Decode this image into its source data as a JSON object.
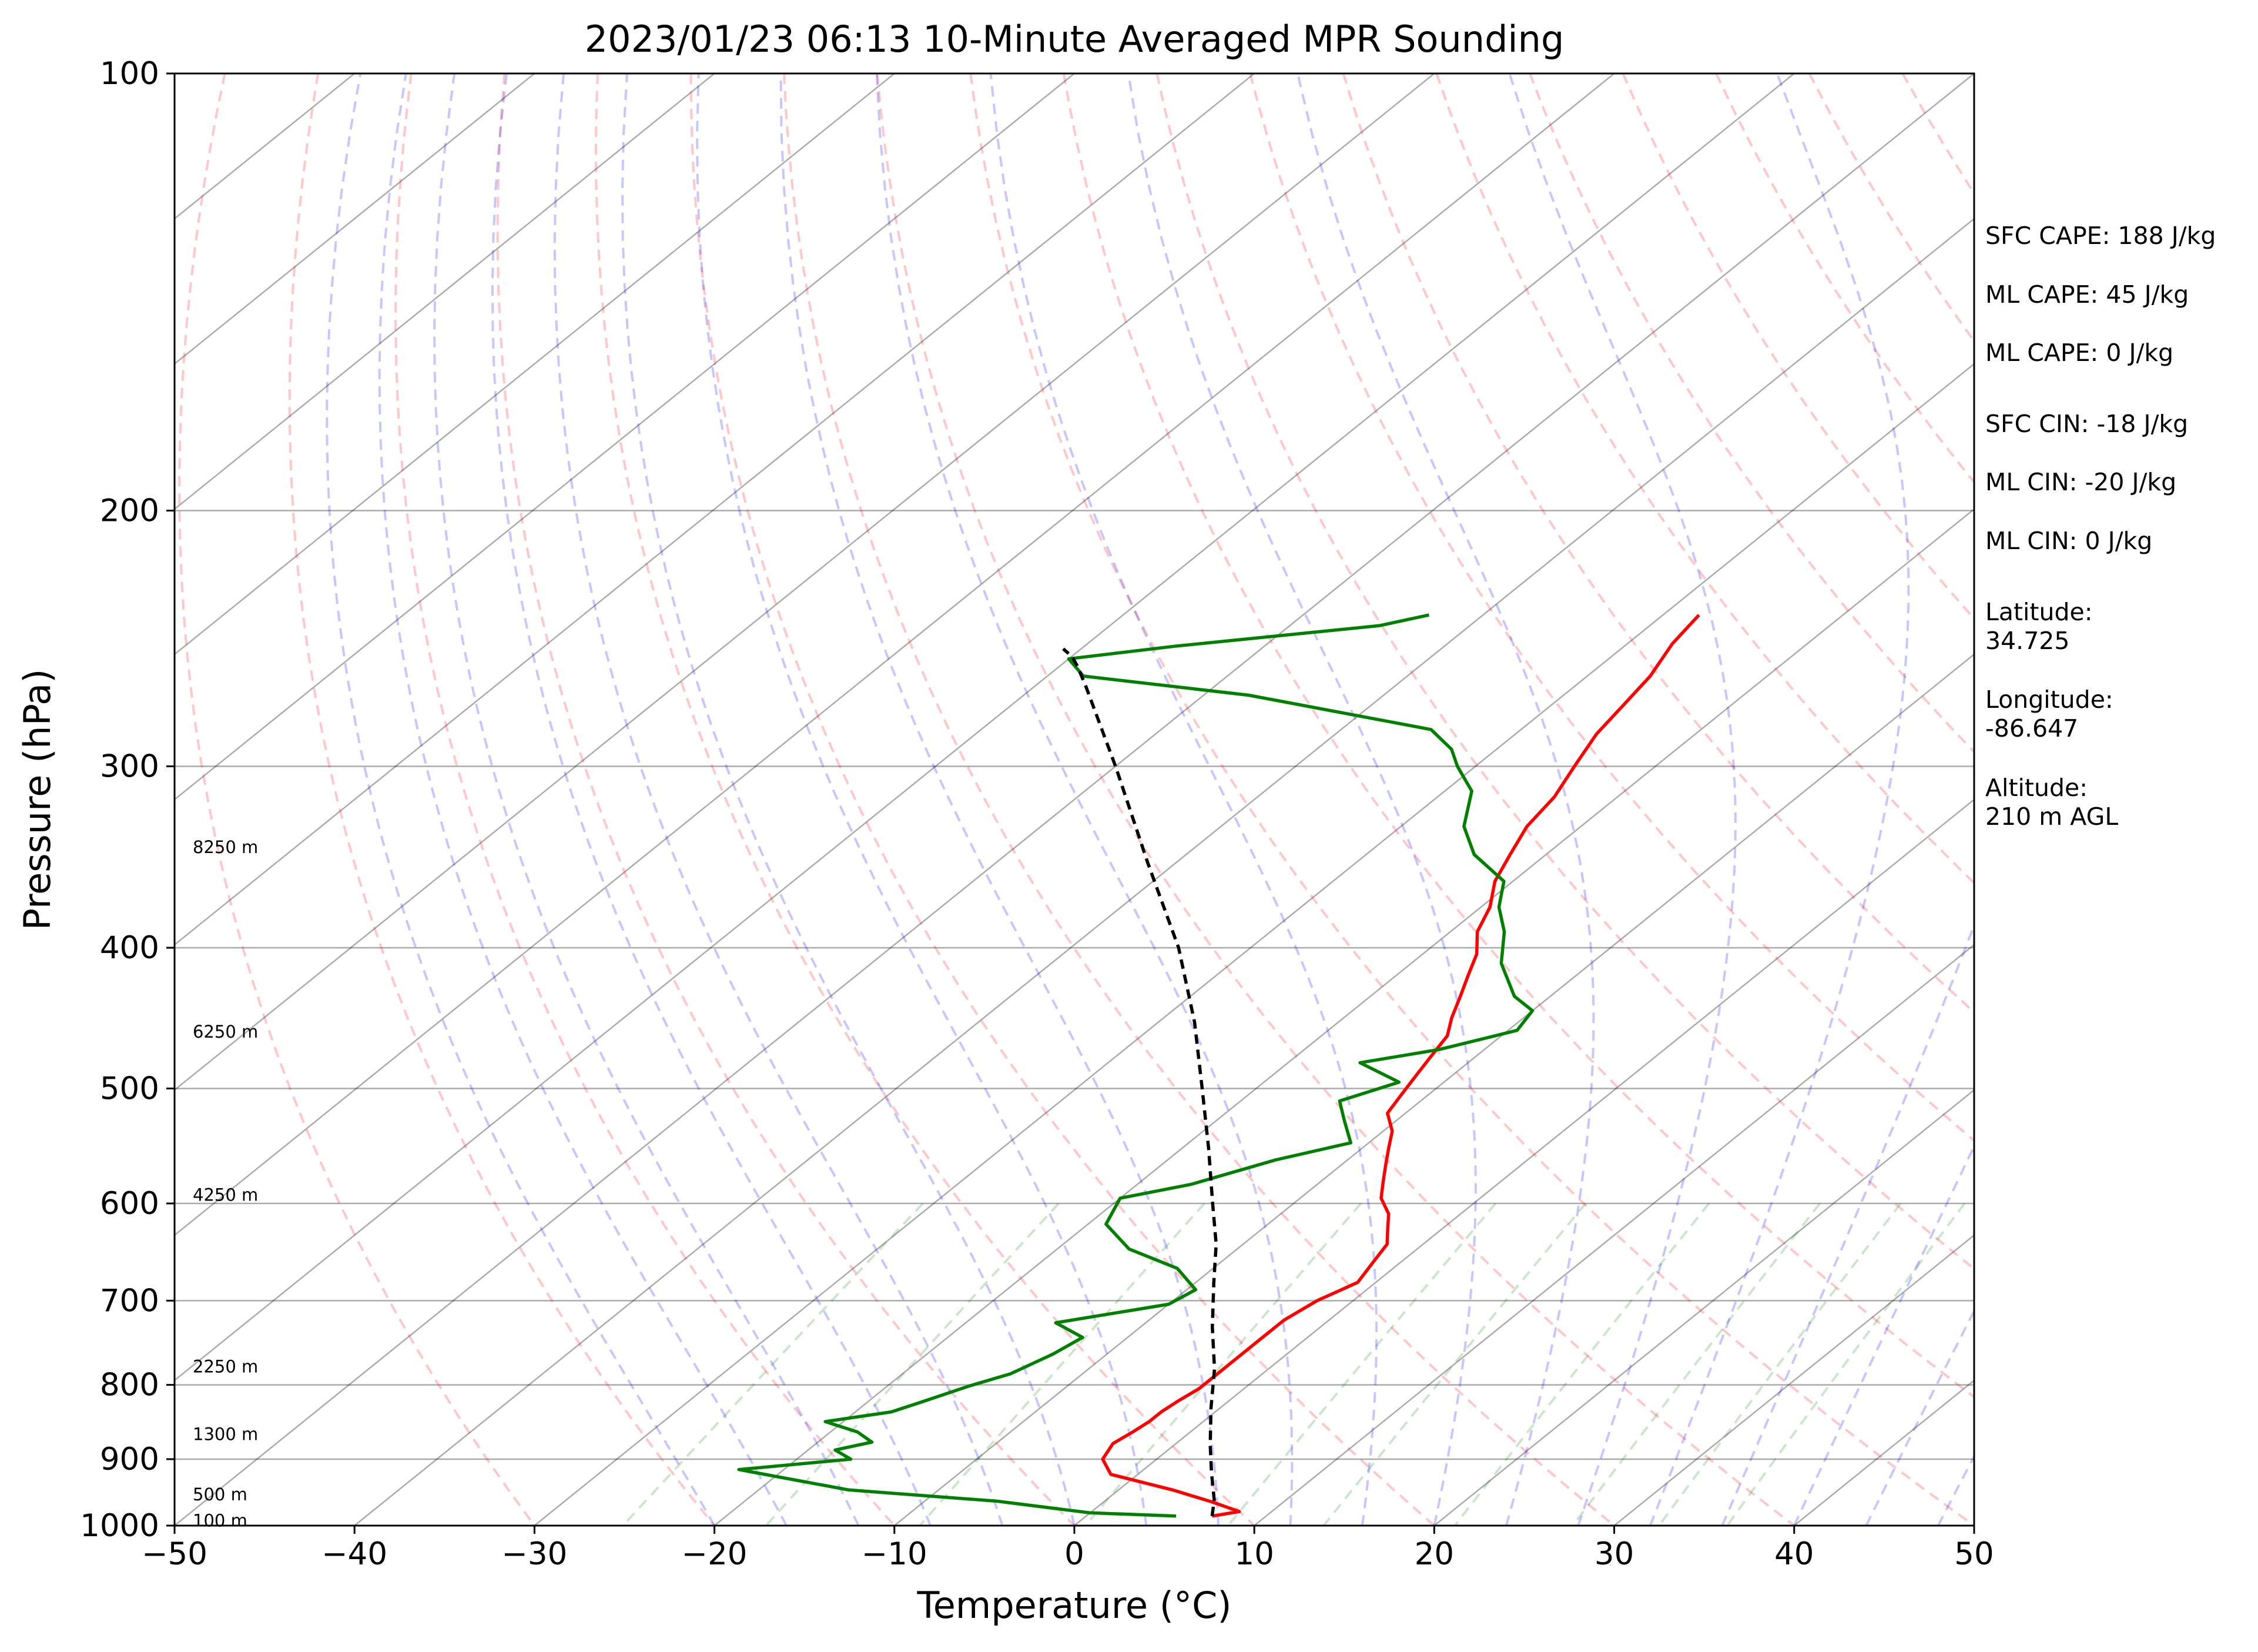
{
  "chart_data": {
    "type": "line",
    "title": "2023/01/23 06:13 10-Minute Averaged MPR Sounding",
    "xlabel": "Temperature (°C)",
    "ylabel": "Pressure (hPa)",
    "xlim": [
      -50,
      50
    ],
    "ylim": [
      1000,
      100
    ],
    "y_scale": "log",
    "skew": "skew-T log-p diagram with dry adiabats, moist adiabats and mixing-ratio lines",
    "grid": "horizontal at labelled pressure levels",
    "x_ticks": [
      "−50",
      "−40",
      "−30",
      "−20",
      "−10",
      "0",
      "10",
      "20",
      "30",
      "40",
      "50"
    ],
    "y_ticks": [
      "100",
      "200",
      "300",
      "400",
      "500",
      "600",
      "700",
      "800",
      "900",
      "1000"
    ],
    "x_tick_values": [
      -50,
      -40,
      -30,
      -20,
      -10,
      0,
      10,
      20,
      30,
      40,
      50
    ],
    "y_tick_values": [
      100,
      200,
      300,
      400,
      500,
      600,
      700,
      800,
      900,
      1000
    ],
    "height_labels": [
      {
        "p": 992,
        "label": "100 m"
      },
      {
        "p": 952,
        "label": "500 m"
      },
      {
        "p": 865,
        "label": "1300 m"
      },
      {
        "p": 777,
        "label": "2250 m"
      },
      {
        "p": 592,
        "label": "4250 m"
      },
      {
        "p": 457,
        "label": "6250 m"
      },
      {
        "p": 341,
        "label": "8250 m"
      }
    ],
    "series": [
      {
        "color": "#ff0000",
        "points": [
          [
            7.0,
            985
          ],
          [
            8.2,
            978
          ],
          [
            6.0,
            963
          ],
          [
            3.0,
            945
          ],
          [
            -1.5,
            922
          ],
          [
            -3.0,
            900
          ],
          [
            -3.5,
            878
          ],
          [
            -3.2,
            862
          ],
          [
            -3.0,
            848
          ],
          [
            -3.0,
            835
          ],
          [
            -2.8,
            820
          ],
          [
            -2.5,
            805
          ],
          [
            -2.5,
            785
          ],
          [
            -2.5,
            765
          ],
          [
            -2.5,
            745
          ],
          [
            -2.5,
            722
          ],
          [
            -2.0,
            700
          ],
          [
            -1.0,
            680
          ],
          [
            -1.5,
            660
          ],
          [
            -2.0,
            640
          ],
          [
            -3.0,
            625
          ],
          [
            -4.0,
            610
          ],
          [
            -5.5,
            595
          ],
          [
            -6.5,
            580
          ],
          [
            -7.5,
            565
          ],
          [
            -8.5,
            550
          ],
          [
            -9.5,
            535
          ],
          [
            -11.0,
            520
          ],
          [
            -11.5,
            505
          ],
          [
            -12.0,
            490
          ],
          [
            -12.5,
            475
          ],
          [
            -13.0,
            460
          ],
          [
            -14.0,
            447
          ],
          [
            -15.0,
            432
          ],
          [
            -16.0,
            418
          ],
          [
            -17.0,
            404
          ],
          [
            -18.5,
            390
          ],
          [
            -19.5,
            375
          ],
          [
            -21.0,
            360
          ],
          [
            -22.0,
            345
          ],
          [
            -23.0,
            330
          ],
          [
            -23.5,
            315
          ],
          [
            -24.5,
            300
          ],
          [
            -25.5,
            285
          ],
          [
            -26.0,
            272
          ],
          [
            -26.5,
            260
          ],
          [
            -27.5,
            247
          ],
          [
            -28.0,
            236
          ]
        ]
      },
      {
        "color": "#008000",
        "points": [
          [
            5.0,
            985
          ],
          [
            0.0,
            980
          ],
          [
            -6.0,
            962
          ],
          [
            -15.0,
            945
          ],
          [
            -22.5,
            915
          ],
          [
            -17.0,
            900
          ],
          [
            -18.5,
            887
          ],
          [
            -17.0,
            876
          ],
          [
            -18.5,
            862
          ],
          [
            -21.0,
            848
          ],
          [
            -18.0,
            835
          ],
          [
            -17.0,
            822
          ],
          [
            -15.5,
            802
          ],
          [
            -14.0,
            786
          ],
          [
            -13.0,
            762
          ],
          [
            -12.5,
            742
          ],
          [
            -15.0,
            725
          ],
          [
            -10.0,
            704
          ],
          [
            -9.5,
            688
          ],
          [
            -12.0,
            665
          ],
          [
            -16.0,
            645
          ],
          [
            -19.0,
            620
          ],
          [
            -20.0,
            595
          ],
          [
            -17.0,
            582
          ],
          [
            -14.0,
            560
          ],
          [
            -11.0,
            545
          ],
          [
            -13.0,
            525
          ],
          [
            -14.5,
            510
          ],
          [
            -12.5,
            495
          ],
          [
            -16.0,
            480
          ],
          [
            -12.5,
            470
          ],
          [
            -9.5,
            456
          ],
          [
            -10.0,
            442
          ],
          [
            -12.0,
            432
          ],
          [
            -15.0,
            410
          ],
          [
            -17.0,
            390
          ],
          [
            -19.0,
            375
          ],
          [
            -20.5,
            360
          ],
          [
            -24.0,
            345
          ],
          [
            -26.5,
            330
          ],
          [
            -28.5,
            312
          ],
          [
            -31.0,
            300
          ],
          [
            -32.5,
            292
          ],
          [
            -35.0,
            283
          ],
          [
            -47.5,
            268
          ],
          [
            -58.0,
            260
          ],
          [
            -60.0,
            253
          ],
          [
            -55.0,
            248
          ],
          [
            -45.0,
            240
          ],
          [
            -43.0,
            236
          ]
        ]
      },
      {
        "color": "#000000",
        "dashed": true,
        "points": [
          [
            7.0,
            985
          ],
          [
            6.0,
            960
          ],
          [
            4.0,
            920
          ],
          [
            2.0,
            880
          ],
          [
            -0.5,
            830
          ],
          [
            -3.0,
            780
          ],
          [
            -6.0,
            730
          ],
          [
            -9.0,
            680
          ],
          [
            -11.5,
            640
          ],
          [
            -14.5,
            600
          ],
          [
            -18.5,
            550
          ],
          [
            -23.0,
            500
          ],
          [
            -28.0,
            450
          ],
          [
            -34.0,
            400
          ],
          [
            -41.5,
            350
          ],
          [
            -50.0,
            300
          ],
          [
            -57.0,
            265
          ],
          [
            -59.0,
            256
          ],
          [
            -60.0,
            252
          ],
          [
            -61.0,
            249
          ]
        ]
      }
    ],
    "legend": "none"
  },
  "stats": [
    "SFC CAPE: 188 J/kg",
    "ML CAPE: 45 J/kg",
    "ML CAPE: 0 J/kg",
    "SFC CIN: -18 J/kg",
    "ML CIN: -20 J/kg",
    "ML CIN: 0 J/kg",
    "Latitude:",
    "34.725",
    "Longitude:",
    "-86.647",
    "Altitude:",
    "210 m AGL"
  ]
}
